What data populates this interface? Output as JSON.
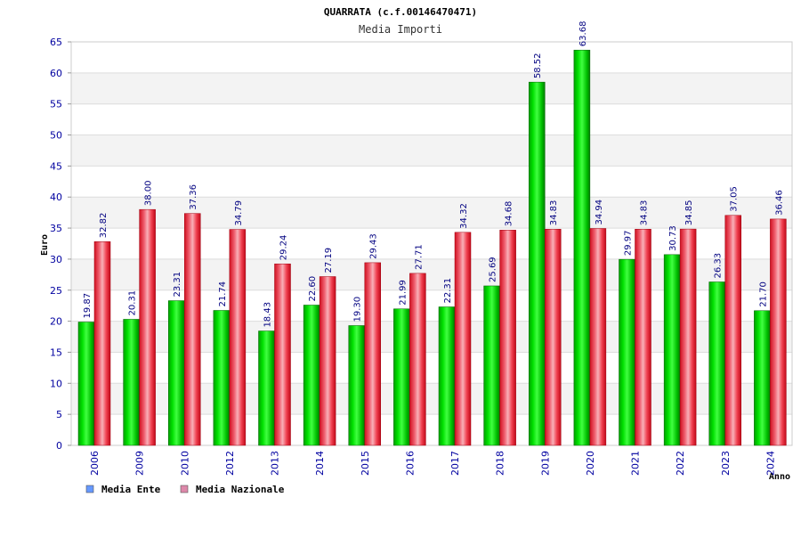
{
  "chart_data": {
    "type": "bar",
    "title": "QUARRATA (c.f.00146470471)",
    "subtitle": "Media Importi",
    "xlabel": "Anno",
    "ylabel": "Euro",
    "ylim": [
      0,
      65
    ],
    "yticks": [
      0,
      5,
      10,
      15,
      20,
      25,
      30,
      35,
      40,
      45,
      50,
      55,
      60,
      65
    ],
    "grid": true,
    "legend_position": "bottom-left",
    "categories": [
      "2006",
      "2009",
      "2010",
      "2012",
      "2013",
      "2014",
      "2015",
      "2016",
      "2017",
      "2018",
      "2019",
      "2020",
      "2021",
      "2022",
      "2023",
      "2024"
    ],
    "series": [
      {
        "name": "Media Ente",
        "color": "#00b000",
        "legend_color": "#6699ff",
        "values": [
          19.87,
          20.31,
          23.31,
          21.74,
          18.43,
          22.6,
          19.3,
          21.99,
          22.31,
          25.69,
          58.52,
          63.68,
          29.97,
          30.73,
          26.33,
          21.7
        ],
        "labels": [
          "19.87",
          "20.31",
          "23.31",
          "21.74",
          "18.43",
          "22.60",
          "19.30",
          "21.99",
          "22.31",
          "25.69",
          "58.52",
          "63.68",
          "29.97",
          "30.73",
          "26.33",
          "21.70"
        ]
      },
      {
        "name": "Media Nazionale",
        "color": "#e0202a",
        "legend_color": "#dd88aa",
        "values": [
          32.82,
          38.0,
          37.36,
          34.79,
          29.24,
          27.19,
          29.43,
          27.71,
          34.32,
          34.68,
          34.83,
          34.94,
          34.83,
          34.85,
          37.05,
          36.46
        ],
        "labels": [
          "32.82",
          "38.00",
          "37.36",
          "34.79",
          "29.24",
          "27.19",
          "29.43",
          "27.71",
          "34.32",
          "34.68",
          "34.83",
          "34.94",
          "34.83",
          "34.85",
          "37.05",
          "36.46"
        ]
      }
    ]
  }
}
